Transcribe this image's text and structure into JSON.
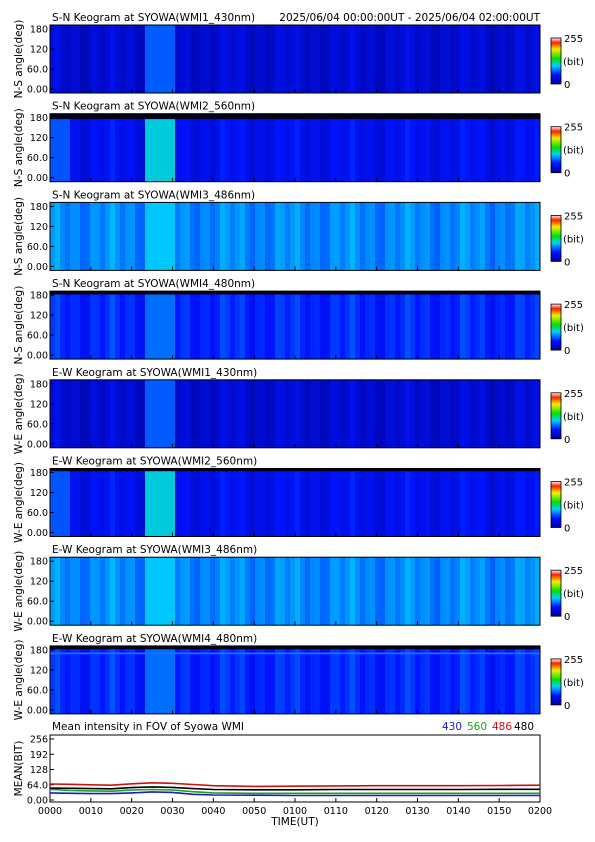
{
  "header": {
    "time_range": "2025/06/04 00:00:00UT - 2025/06/04 02:00:00UT"
  },
  "colorbar": {
    "max_label": "255",
    "unit_label": "(bit)",
    "min_label": "0"
  },
  "keogram_yticks": [
    "180",
    "120",
    "60.0",
    "0.00"
  ],
  "chart_data": [
    {
      "type": "heatmap",
      "title": "S-N Keogram at SYOWA(WMI1_430nm)",
      "ylabel": "N-S angle(deg)",
      "ylim": [
        0,
        180
      ],
      "xlim": [
        "00:00",
        "02:00"
      ],
      "zlim": [
        0,
        255
      ],
      "base_level": 0.12,
      "bright_band": [
        0.95,
        1.25
      ],
      "band_level": 0.28,
      "top_strip": 0,
      "color_line_deg": 0
    },
    {
      "type": "heatmap",
      "title": "S-N Keogram at SYOWA(WMI2_560nm)",
      "ylabel": "N-S angle(deg)",
      "ylim": [
        0,
        180
      ],
      "xlim": [
        "00:00",
        "02:00"
      ],
      "zlim": [
        0,
        255
      ],
      "base_level": 0.17,
      "bright_band": [
        0.95,
        1.25
      ],
      "band_level": 0.42,
      "top_strip": 0.08,
      "color_line_deg": 0
    },
    {
      "type": "heatmap",
      "title": "S-N Keogram at SYOWA(WMI3_486nm)",
      "ylabel": "N-S angle(deg)",
      "ylim": [
        0,
        180
      ],
      "xlim": [
        "00:00",
        "02:00"
      ],
      "zlim": [
        0,
        255
      ],
      "base_level": 0.33,
      "bright_band": [
        0.95,
        1.25
      ],
      "band_level": 0.4,
      "top_strip": 0,
      "color_line_deg": 0
    },
    {
      "type": "heatmap",
      "title": "S-N Keogram at SYOWA(WMI4_480nm)",
      "ylabel": "N-S angle(deg)",
      "ylim": [
        0,
        180
      ],
      "xlim": [
        "00:00",
        "02:00"
      ],
      "zlim": [
        0,
        255
      ],
      "base_level": 0.22,
      "bright_band": [
        0.95,
        1.25
      ],
      "band_level": 0.3,
      "top_strip": 0.05,
      "color_line_deg": 0
    },
    {
      "type": "heatmap",
      "title": "E-W Keogram at SYOWA(WMI1_430nm)",
      "ylabel": "W-E angle(deg)",
      "ylim": [
        0,
        180
      ],
      "xlim": [
        "00:00",
        "02:00"
      ],
      "zlim": [
        0,
        255
      ],
      "base_level": 0.12,
      "bright_band": [
        0.95,
        1.25
      ],
      "band_level": 0.28,
      "top_strip": 0,
      "color_line_deg": 0
    },
    {
      "type": "heatmap",
      "title": "E-W Keogram at SYOWA(WMI2_560nm)",
      "ylabel": "W-E angle(deg)",
      "ylim": [
        0,
        180
      ],
      "xlim": [
        "00:00",
        "02:00"
      ],
      "zlim": [
        0,
        255
      ],
      "base_level": 0.17,
      "bright_band": [
        0.95,
        1.25
      ],
      "band_level": 0.42,
      "top_strip": 0.04,
      "color_line_deg": 0
    },
    {
      "type": "heatmap",
      "title": "E-W Keogram at SYOWA(WMI3_486nm)",
      "ylabel": "W-E angle(deg)",
      "ylim": [
        0,
        180
      ],
      "xlim": [
        "00:00",
        "02:00"
      ],
      "zlim": [
        0,
        255
      ],
      "base_level": 0.33,
      "bright_band": [
        0.95,
        1.25
      ],
      "band_level": 0.4,
      "top_strip": 0,
      "color_line_deg": 0
    },
    {
      "type": "heatmap",
      "title": "E-W Keogram at SYOWA(WMI4_480nm)",
      "ylabel": "W-E angle(deg)",
      "ylim": [
        0,
        180
      ],
      "xlim": [
        "00:00",
        "02:00"
      ],
      "zlim": [
        0,
        255
      ],
      "base_level": 0.22,
      "bright_band": [
        0.95,
        1.25
      ],
      "band_level": 0.3,
      "top_strip": 0.05,
      "color_line_deg": 160
    },
    {
      "type": "line",
      "title": "Mean intensity in FOV of Syowa WMI",
      "xlabel": "TIME(UT)",
      "ylabel": "MEAN(BIT)",
      "ylim": [
        0,
        256
      ],
      "yticks": [
        "256",
        "192",
        "128",
        "64.0",
        "0.00"
      ],
      "xticks": [
        "0000",
        "0010",
        "0020",
        "0030",
        "0040",
        "0050",
        "0100",
        "0110",
        "0120",
        "0130",
        "0140",
        "0150",
        "0200"
      ],
      "x_minutes": [
        0,
        5,
        10,
        15,
        20,
        25,
        30,
        35,
        40,
        50,
        60,
        70,
        80,
        90,
        100,
        110,
        120
      ],
      "series": [
        {
          "name": "430",
          "color": "#1a1acc",
          "values": [
            30,
            28,
            27,
            27,
            30,
            34,
            32,
            24,
            21,
            20,
            19,
            19,
            19,
            19,
            19,
            19,
            19
          ]
        },
        {
          "name": "560",
          "color": "#1aa01a",
          "values": [
            45,
            40,
            38,
            37,
            42,
            44,
            42,
            35,
            30,
            28,
            28,
            28,
            28,
            28,
            28,
            28,
            28
          ]
        },
        {
          "name": "486",
          "color": "#d01010",
          "values": [
            67,
            66,
            64,
            62,
            68,
            72,
            70,
            65,
            60,
            57,
            58,
            59,
            60,
            60,
            60,
            61,
            62
          ]
        },
        {
          "name": "480",
          "color": "#000000",
          "values": [
            50,
            49,
            48,
            47,
            52,
            55,
            53,
            48,
            44,
            43,
            43,
            44,
            44,
            44,
            44,
            45,
            45
          ]
        }
      ]
    }
  ]
}
